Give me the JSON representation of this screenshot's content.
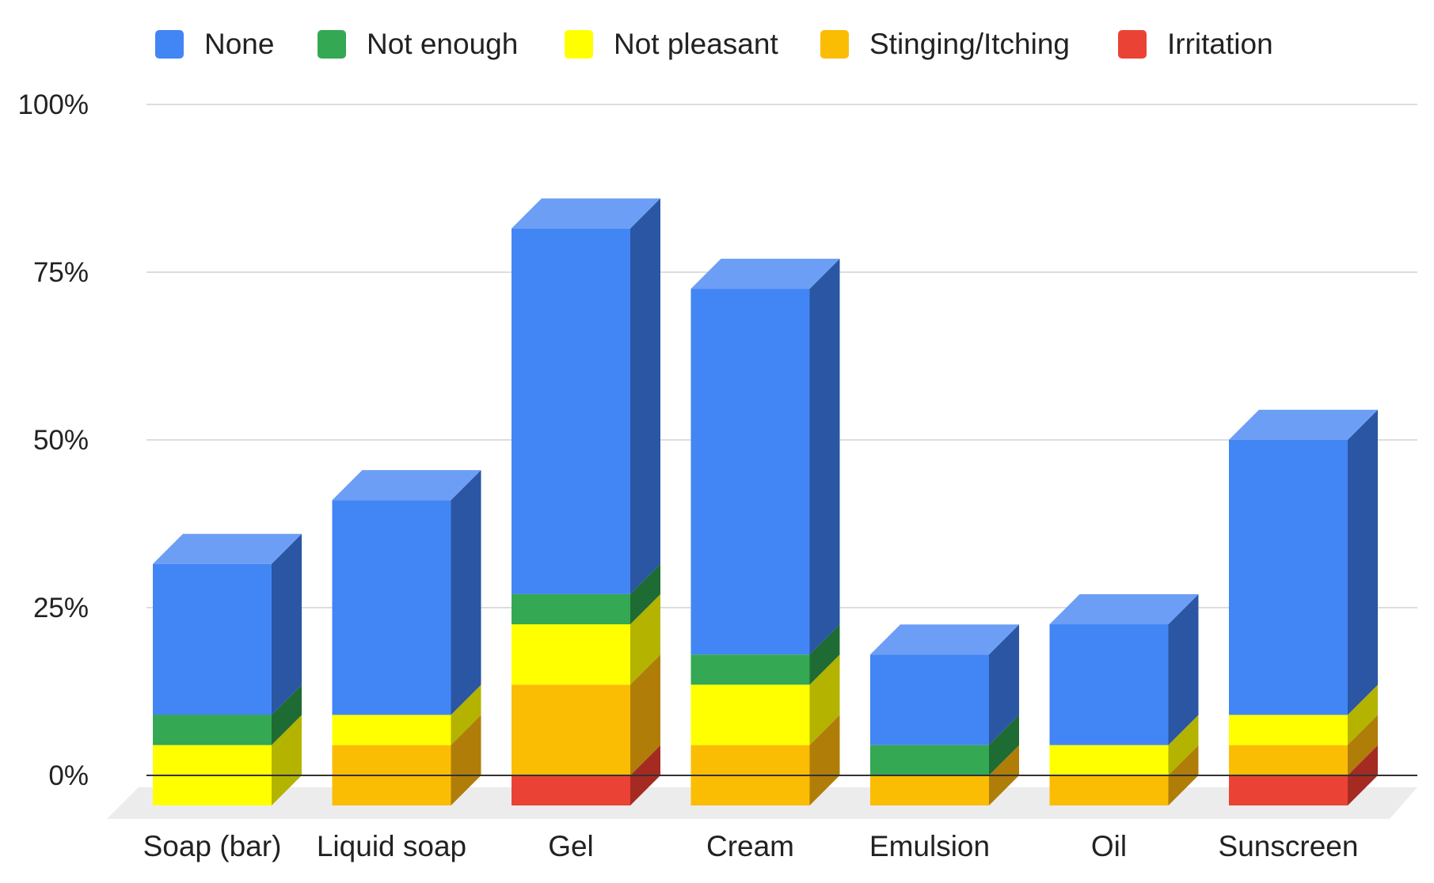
{
  "chart_data": {
    "type": "bar",
    "stacked": true,
    "style": "3d",
    "title": "",
    "xlabel": "",
    "ylabel": "",
    "ylim": [
      0,
      100
    ],
    "ytick_labels": [
      "0%",
      "25%",
      "50%",
      "75%",
      "100%"
    ],
    "ytick_values": [
      0,
      25,
      50,
      75,
      100
    ],
    "categories": [
      "Soap (bar)",
      "Liquid soap",
      "Gel",
      "Cream",
      "Emulsion",
      "Oil",
      "Sunscreen"
    ],
    "legend_position": "top",
    "series": [
      {
        "name": "Irritation",
        "color": "#ea4335",
        "side_color": "#a52a22",
        "values": [
          0,
          0,
          4.5,
          0,
          0,
          0,
          4.5
        ]
      },
      {
        "name": "Stinging/Itching",
        "color": "#fbbc04",
        "side_color": "#b07d08",
        "values": [
          0,
          9,
          13.5,
          9,
          4.5,
          4.5,
          4.5
        ]
      },
      {
        "name": "Not pleasant",
        "color": "#ffff00",
        "side_color": "#b3b300",
        "values": [
          9,
          4.5,
          9,
          9,
          0,
          4.5,
          4.5
        ]
      },
      {
        "name": "Not enough",
        "color": "#34a853",
        "side_color": "#1f6b34",
        "values": [
          4.5,
          0,
          4.5,
          4.5,
          4.5,
          0,
          0
        ]
      },
      {
        "name": "None",
        "color": "#4285f4",
        "side_color": "#2a56a3",
        "top_color": "#6d9ef5",
        "values": [
          22.5,
          32,
          54.5,
          54.5,
          13.5,
          18,
          41
        ]
      }
    ],
    "legend_order": [
      "None",
      "Not enough",
      "Not pleasant",
      "Stinging/Itching",
      "Irritation"
    ]
  }
}
